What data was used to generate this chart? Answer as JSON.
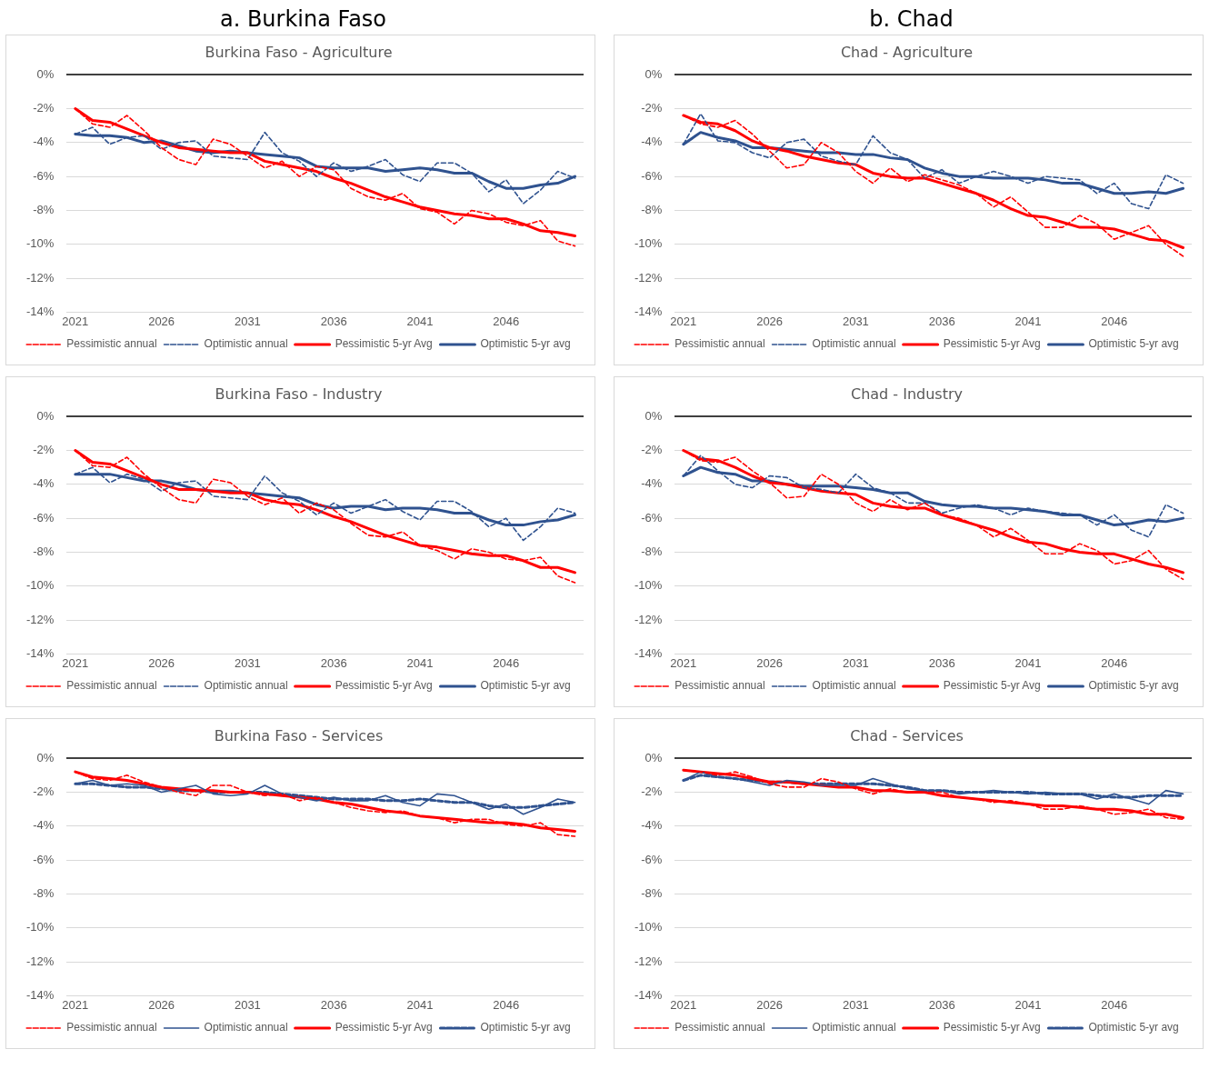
{
  "chart_data": [
    {
      "type": "line",
      "title": "Burkina Faso - Agriculture",
      "annotations": [
        "a. Burkina Faso"
      ],
      "x": [
        2021,
        2022,
        2023,
        2024,
        2025,
        2026,
        2027,
        2028,
        2029,
        2030,
        2031,
        2032,
        2033,
        2034,
        2035,
        2036,
        2037,
        2038,
        2039,
        2040,
        2041,
        2042,
        2043,
        2044,
        2045,
        2046,
        2047,
        2048,
        2049,
        2050
      ],
      "xlim": [
        2020.5,
        2050.5
      ],
      "xticks": [
        2021,
        2026,
        2031,
        2036,
        2041,
        2046
      ],
      "ylim": [
        -14,
        0
      ],
      "yticks": [
        {
          "value": 0,
          "label": "0%"
        },
        {
          "value": -2,
          "label": "-2%"
        },
        {
          "value": -4,
          "label": "-4%"
        },
        {
          "value": -6,
          "label": "-6%"
        },
        {
          "value": -8,
          "label": "-8%"
        },
        {
          "value": -10,
          "label": "-10%"
        },
        {
          "value": -12,
          "label": "-12%"
        },
        {
          "value": -14,
          "label": "-14%"
        }
      ],
      "grid": "y",
      "legend": "bottom",
      "marker": "none",
      "series": [
        {
          "name": "Pessimistic annual",
          "color": "#ff0000",
          "line_style": "dashed",
          "values": [
            -2.0,
            -2.9,
            -3.1,
            -2.4,
            -3.3,
            -4.3,
            -5.0,
            -5.3,
            -3.8,
            -4.1,
            -4.8,
            -5.5,
            -5.1,
            -6.0,
            -5.4,
            -5.6,
            -6.7,
            -7.2,
            -7.4,
            -7.0,
            -7.9,
            -8.1,
            -8.8,
            -8.0,
            -8.2,
            -8.7,
            -8.9,
            -8.6,
            -9.8,
            -10.1
          ]
        },
        {
          "name": "Optimistic annual",
          "color": "#2f528f",
          "line_style": "dashed",
          "values": [
            -3.5,
            -3.1,
            -4.1,
            -3.7,
            -3.6,
            -4.4,
            -4.0,
            -3.9,
            -4.8,
            -4.9,
            -5.0,
            -3.4,
            -4.6,
            -5.1,
            -6.0,
            -5.2,
            -5.7,
            -5.4,
            -5.0,
            -5.9,
            -6.3,
            -5.2,
            -5.2,
            -5.8,
            -6.9,
            -6.2,
            -7.6,
            -6.8,
            -5.7,
            -6.1
          ]
        },
        {
          "name": "Pessimistic 5-yr Avg",
          "color": "#ff0000",
          "line_style": "solid",
          "values": [
            -2.0,
            -2.7,
            -2.8,
            -3.2,
            -3.6,
            -4.0,
            -4.3,
            -4.4,
            -4.5,
            -4.6,
            -4.6,
            -5.1,
            -5.3,
            -5.5,
            -5.7,
            -6.1,
            -6.4,
            -6.8,
            -7.2,
            -7.5,
            -7.8,
            -8.0,
            -8.2,
            -8.3,
            -8.5,
            -8.5,
            -8.8,
            -9.2,
            -9.3,
            -9.5
          ]
        },
        {
          "name": "Optimistic 5-yr avg",
          "color": "#2f528f",
          "line_style": "solid",
          "values": [
            -3.5,
            -3.6,
            -3.6,
            -3.7,
            -4.0,
            -3.9,
            -4.2,
            -4.5,
            -4.6,
            -4.5,
            -4.6,
            -4.7,
            -4.8,
            -4.9,
            -5.4,
            -5.5,
            -5.5,
            -5.5,
            -5.7,
            -5.6,
            -5.5,
            -5.6,
            -5.8,
            -5.8,
            -6.3,
            -6.7,
            -6.7,
            -6.5,
            -6.4,
            -6.0
          ]
        }
      ]
    },
    {
      "type": "line",
      "title": "Chad - Agriculture",
      "annotations": [
        "b. Chad"
      ],
      "x": [
        2021,
        2022,
        2023,
        2024,
        2025,
        2026,
        2027,
        2028,
        2029,
        2030,
        2031,
        2032,
        2033,
        2034,
        2035,
        2036,
        2037,
        2038,
        2039,
        2040,
        2041,
        2042,
        2043,
        2044,
        2045,
        2046,
        2047,
        2048,
        2049,
        2050
      ],
      "xlim": [
        2020.5,
        2050.5
      ],
      "xticks": [
        2021,
        2026,
        2031,
        2036,
        2041,
        2046
      ],
      "ylim": [
        -14,
        0
      ],
      "yticks": [
        {
          "value": 0,
          "label": "0%"
        },
        {
          "value": -2,
          "label": "-2%"
        },
        {
          "value": -4,
          "label": "-4%"
        },
        {
          "value": -6,
          "label": "-6%"
        },
        {
          "value": -8,
          "label": "-8%"
        },
        {
          "value": -10,
          "label": "-10%"
        },
        {
          "value": -12,
          "label": "-12%"
        },
        {
          "value": -14,
          "label": "-14%"
        }
      ],
      "grid": "y",
      "legend": "bottom",
      "marker": "none",
      "series": [
        {
          "name": "Pessimistic annual",
          "color": "#ff0000",
          "line_style": "dashed",
          "values": [
            -2.4,
            -2.9,
            -3.1,
            -2.7,
            -3.5,
            -4.5,
            -5.5,
            -5.3,
            -4.0,
            -4.6,
            -5.7,
            -6.4,
            -5.5,
            -6.3,
            -5.9,
            -6.2,
            -6.5,
            -7.0,
            -7.8,
            -7.2,
            -8.1,
            -9.0,
            -9.0,
            -8.3,
            -8.8,
            -9.7,
            -9.3,
            -8.9,
            -10.0,
            -10.7
          ]
        },
        {
          "name": "Optimistic annual",
          "color": "#2f528f",
          "line_style": "dashed",
          "values": [
            -4.1,
            -2.3,
            -3.9,
            -4.0,
            -4.6,
            -4.9,
            -4.0,
            -3.8,
            -4.8,
            -5.1,
            -5.3,
            -3.6,
            -4.6,
            -5.0,
            -6.1,
            -5.6,
            -6.4,
            -6.0,
            -5.7,
            -6.0,
            -6.4,
            -6.0,
            -6.1,
            -6.2,
            -7.0,
            -6.4,
            -7.6,
            -7.9,
            -5.9,
            -6.4
          ]
        },
        {
          "name": "Pessimistic 5-yr Avg",
          "color": "#ff0000",
          "line_style": "solid",
          "values": [
            -2.4,
            -2.8,
            -2.9,
            -3.3,
            -3.9,
            -4.3,
            -4.5,
            -4.8,
            -5.0,
            -5.2,
            -5.3,
            -5.8,
            -6.0,
            -6.1,
            -6.1,
            -6.4,
            -6.7,
            -7.0,
            -7.4,
            -7.9,
            -8.3,
            -8.4,
            -8.7,
            -9.0,
            -9.0,
            -9.1,
            -9.4,
            -9.7,
            -9.8,
            -10.2
          ]
        },
        {
          "name": "Optimistic 5-yr avg",
          "color": "#2f528f",
          "line_style": "solid",
          "values": [
            -4.1,
            -3.4,
            -3.7,
            -3.9,
            -4.3,
            -4.3,
            -4.4,
            -4.5,
            -4.6,
            -4.6,
            -4.7,
            -4.7,
            -4.9,
            -5.0,
            -5.5,
            -5.8,
            -6.0,
            -6.0,
            -6.1,
            -6.1,
            -6.1,
            -6.2,
            -6.4,
            -6.4,
            -6.7,
            -7.0,
            -7.0,
            -6.9,
            -7.0,
            -6.7
          ]
        }
      ]
    },
    {
      "type": "line",
      "title": "Burkina Faso - Industry",
      "x": [
        2021,
        2022,
        2023,
        2024,
        2025,
        2026,
        2027,
        2028,
        2029,
        2030,
        2031,
        2032,
        2033,
        2034,
        2035,
        2036,
        2037,
        2038,
        2039,
        2040,
        2041,
        2042,
        2043,
        2044,
        2045,
        2046,
        2047,
        2048,
        2049,
        2050
      ],
      "xlim": [
        2020.5,
        2050.5
      ],
      "xticks": [
        2021,
        2026,
        2031,
        2036,
        2041,
        2046
      ],
      "ylim": [
        -14,
        0
      ],
      "yticks": [
        {
          "value": 0,
          "label": "0%"
        },
        {
          "value": -2,
          "label": "-2%"
        },
        {
          "value": -4,
          "label": "-4%"
        },
        {
          "value": -6,
          "label": "-6%"
        },
        {
          "value": -8,
          "label": "-8%"
        },
        {
          "value": -10,
          "label": "-10%"
        },
        {
          "value": -12,
          "label": "-12%"
        },
        {
          "value": -14,
          "label": "-14%"
        }
      ],
      "grid": "y",
      "legend": "bottom",
      "marker": "none",
      "series": [
        {
          "name": "Pessimistic annual",
          "color": "#ff0000",
          "line_style": "dashed",
          "values": [
            -2.0,
            -2.9,
            -3.0,
            -2.4,
            -3.4,
            -4.2,
            -4.9,
            -5.1,
            -3.7,
            -3.9,
            -4.7,
            -5.2,
            -4.8,
            -5.7,
            -5.1,
            -5.5,
            -6.3,
            -7.0,
            -7.1,
            -6.8,
            -7.6,
            -7.9,
            -8.4,
            -7.8,
            -8.0,
            -8.4,
            -8.5,
            -8.3,
            -9.4,
            -9.8
          ]
        },
        {
          "name": "Optimistic annual",
          "color": "#2f528f",
          "line_style": "dashed",
          "values": [
            -3.4,
            -3.0,
            -3.9,
            -3.4,
            -3.7,
            -4.4,
            -3.9,
            -3.8,
            -4.7,
            -4.8,
            -4.9,
            -3.5,
            -4.5,
            -5.0,
            -5.8,
            -5.1,
            -5.7,
            -5.3,
            -4.9,
            -5.6,
            -6.1,
            -5.0,
            -5.0,
            -5.6,
            -6.5,
            -6.0,
            -7.3,
            -6.5,
            -5.4,
            -5.7
          ]
        },
        {
          "name": "Pessimistic 5-yr Avg",
          "color": "#ff0000",
          "line_style": "solid",
          "values": [
            -2.0,
            -2.7,
            -2.8,
            -3.2,
            -3.6,
            -4.0,
            -4.3,
            -4.3,
            -4.4,
            -4.5,
            -4.5,
            -4.9,
            -5.1,
            -5.2,
            -5.5,
            -5.9,
            -6.2,
            -6.6,
            -7.0,
            -7.3,
            -7.6,
            -7.7,
            -7.9,
            -8.1,
            -8.2,
            -8.2,
            -8.5,
            -8.9,
            -8.9,
            -9.2
          ]
        },
        {
          "name": "Optimistic 5-yr avg",
          "color": "#2f528f",
          "line_style": "solid",
          "values": [
            -3.4,
            -3.4,
            -3.4,
            -3.6,
            -3.8,
            -3.8,
            -4.0,
            -4.3,
            -4.4,
            -4.4,
            -4.5,
            -4.6,
            -4.7,
            -4.8,
            -5.2,
            -5.4,
            -5.3,
            -5.3,
            -5.5,
            -5.4,
            -5.4,
            -5.5,
            -5.7,
            -5.7,
            -6.1,
            -6.4,
            -6.4,
            -6.2,
            -6.1,
            -5.8
          ]
        }
      ]
    },
    {
      "type": "line",
      "title": "Chad - Industry",
      "x": [
        2021,
        2022,
        2023,
        2024,
        2025,
        2026,
        2027,
        2028,
        2029,
        2030,
        2031,
        2032,
        2033,
        2034,
        2035,
        2036,
        2037,
        2038,
        2039,
        2040,
        2041,
        2042,
        2043,
        2044,
        2045,
        2046,
        2047,
        2048,
        2049,
        2050
      ],
      "xlim": [
        2020.5,
        2050.5
      ],
      "xticks": [
        2021,
        2026,
        2031,
        2036,
        2041,
        2046
      ],
      "ylim": [
        -14,
        0
      ],
      "yticks": [
        {
          "value": 0,
          "label": "0%"
        },
        {
          "value": -2,
          "label": "-2%"
        },
        {
          "value": -4,
          "label": "-4%"
        },
        {
          "value": -6,
          "label": "-6%"
        },
        {
          "value": -8,
          "label": "-8%"
        },
        {
          "value": -10,
          "label": "-10%"
        },
        {
          "value": -12,
          "label": "-12%"
        },
        {
          "value": -14,
          "label": "-14%"
        }
      ],
      "grid": "y",
      "legend": "bottom",
      "marker": "none",
      "series": [
        {
          "name": "Pessimistic annual",
          "color": "#ff0000",
          "line_style": "dashed",
          "values": [
            -2.0,
            -2.6,
            -2.7,
            -2.4,
            -3.2,
            -3.9,
            -4.8,
            -4.7,
            -3.4,
            -4.0,
            -5.1,
            -5.6,
            -4.9,
            -5.5,
            -5.1,
            -5.8,
            -6.0,
            -6.4,
            -7.1,
            -6.6,
            -7.3,
            -8.1,
            -8.1,
            -7.5,
            -7.9,
            -8.7,
            -8.5,
            -7.9,
            -9.0,
            -9.6
          ]
        },
        {
          "name": "Optimistic annual",
          "color": "#2f528f",
          "line_style": "dashed",
          "values": [
            -3.5,
            -2.3,
            -3.2,
            -4.0,
            -4.2,
            -3.5,
            -3.6,
            -4.2,
            -4.3,
            -4.5,
            -3.4,
            -4.2,
            -4.5,
            -5.1,
            -5.1,
            -5.7,
            -5.4,
            -5.2,
            -5.4,
            -5.8,
            -5.4,
            -5.6,
            -5.7,
            -5.8,
            -6.4,
            -5.8,
            -6.7,
            -7.1,
            -5.2,
            -5.7
          ]
        },
        {
          "name": "Pessimistic 5-yr Avg",
          "color": "#ff0000",
          "line_style": "solid",
          "values": [
            -2.0,
            -2.5,
            -2.6,
            -3.0,
            -3.5,
            -3.9,
            -4.0,
            -4.2,
            -4.4,
            -4.5,
            -4.6,
            -5.1,
            -5.3,
            -5.4,
            -5.4,
            -5.8,
            -6.1,
            -6.4,
            -6.7,
            -7.1,
            -7.4,
            -7.5,
            -7.8,
            -8.0,
            -8.1,
            -8.1,
            -8.4,
            -8.7,
            -8.9,
            -9.2
          ]
        },
        {
          "name": "Optimistic 5-yr avg",
          "color": "#2f528f",
          "line_style": "solid",
          "values": [
            -3.5,
            -3.0,
            -3.3,
            -3.4,
            -3.8,
            -3.8,
            -4.0,
            -4.1,
            -4.1,
            -4.1,
            -4.2,
            -4.3,
            -4.5,
            -4.5,
            -5.0,
            -5.2,
            -5.3,
            -5.3,
            -5.4,
            -5.4,
            -5.5,
            -5.6,
            -5.8,
            -5.8,
            -6.1,
            -6.4,
            -6.3,
            -6.1,
            -6.2,
            -6.0
          ]
        }
      ]
    },
    {
      "type": "line",
      "title": "Burkina Faso - Services",
      "x": [
        2021,
        2022,
        2023,
        2024,
        2025,
        2026,
        2027,
        2028,
        2029,
        2030,
        2031,
        2032,
        2033,
        2034,
        2035,
        2036,
        2037,
        2038,
        2039,
        2040,
        2041,
        2042,
        2043,
        2044,
        2045,
        2046,
        2047,
        2048,
        2049,
        2050
      ],
      "xlim": [
        2020.5,
        2050.5
      ],
      "xticks": [
        2021,
        2026,
        2031,
        2036,
        2041,
        2046
      ],
      "ylim": [
        -14,
        0
      ],
      "yticks": [
        {
          "value": 0,
          "label": "0%"
        },
        {
          "value": -2,
          "label": "-2%"
        },
        {
          "value": -4,
          "label": "-4%"
        },
        {
          "value": -6,
          "label": "-6%"
        },
        {
          "value": -8,
          "label": "-8%"
        },
        {
          "value": -10,
          "label": "-10%"
        },
        {
          "value": -12,
          "label": "-12%"
        },
        {
          "value": -14,
          "label": "-14%"
        }
      ],
      "grid": "y",
      "legend": "bottom",
      "marker": "none",
      "series": [
        {
          "name": "Pessimistic annual",
          "color": "#ff0000",
          "line_style": "dashed",
          "values": [
            -0.8,
            -1.2,
            -1.3,
            -1.0,
            -1.4,
            -1.7,
            -2.0,
            -2.2,
            -1.6,
            -1.6,
            -2.0,
            -2.2,
            -2.1,
            -2.5,
            -2.3,
            -2.6,
            -2.9,
            -3.1,
            -3.2,
            -3.1,
            -3.4,
            -3.5,
            -3.8,
            -3.6,
            -3.6,
            -3.9,
            -4.0,
            -3.8,
            -4.5,
            -4.6
          ]
        },
        {
          "name": "Optimistic annual",
          "color": "#2f528f",
          "line_style": "solid",
          "values": [
            -1.5,
            -1.3,
            -1.6,
            -1.5,
            -1.6,
            -2.0,
            -1.8,
            -1.6,
            -2.1,
            -2.2,
            -2.1,
            -1.6,
            -2.1,
            -2.3,
            -2.5,
            -2.3,
            -2.5,
            -2.5,
            -2.2,
            -2.6,
            -2.8,
            -2.1,
            -2.2,
            -2.6,
            -3.0,
            -2.7,
            -3.3,
            -2.9,
            -2.4,
            -2.6
          ]
        },
        {
          "name": "Pessimistic 5-yr Avg",
          "color": "#ff0000",
          "line_style": "solid",
          "values": [
            -0.8,
            -1.1,
            -1.2,
            -1.3,
            -1.5,
            -1.7,
            -1.8,
            -1.9,
            -1.9,
            -2.0,
            -2.0,
            -2.1,
            -2.2,
            -2.3,
            -2.4,
            -2.6,
            -2.7,
            -2.9,
            -3.1,
            -3.2,
            -3.4,
            -3.5,
            -3.6,
            -3.7,
            -3.8,
            -3.8,
            -3.9,
            -4.1,
            -4.2,
            -4.3
          ]
        },
        {
          "name": "Optimistic 5-yr avg",
          "color": "#2f528f",
          "line_style": "dashed",
          "values": [
            -1.5,
            -1.5,
            -1.6,
            -1.7,
            -1.7,
            -1.8,
            -1.9,
            -1.9,
            -2.0,
            -2.0,
            -2.0,
            -2.0,
            -2.1,
            -2.2,
            -2.3,
            -2.4,
            -2.4,
            -2.4,
            -2.5,
            -2.5,
            -2.4,
            -2.5,
            -2.6,
            -2.6,
            -2.8,
            -2.9,
            -2.9,
            -2.8,
            -2.7,
            -2.6
          ]
        }
      ]
    },
    {
      "type": "line",
      "title": "Chad - Services",
      "x": [
        2021,
        2022,
        2023,
        2024,
        2025,
        2026,
        2027,
        2028,
        2029,
        2030,
        2031,
        2032,
        2033,
        2034,
        2035,
        2036,
        2037,
        2038,
        2039,
        2040,
        2041,
        2042,
        2043,
        2044,
        2045,
        2046,
        2047,
        2048,
        2049,
        2050
      ],
      "xlim": [
        2020.5,
        2050.5
      ],
      "xticks": [
        2021,
        2026,
        2031,
        2036,
        2041,
        2046
      ],
      "ylim": [
        -14,
        0
      ],
      "yticks": [
        {
          "value": 0,
          "label": "0%"
        },
        {
          "value": -2,
          "label": "-2%"
        },
        {
          "value": -4,
          "label": "-4%"
        },
        {
          "value": -6,
          "label": "-6%"
        },
        {
          "value": -8,
          "label": "-8%"
        },
        {
          "value": -10,
          "label": "-10%"
        },
        {
          "value": -12,
          "label": "-12%"
        },
        {
          "value": -14,
          "label": "-14%"
        }
      ],
      "grid": "y",
      "legend": "bottom",
      "marker": "none",
      "series": [
        {
          "name": "Pessimistic annual",
          "color": "#ff0000",
          "line_style": "dashed",
          "values": [
            -0.7,
            -0.8,
            -1.0,
            -0.8,
            -1.1,
            -1.5,
            -1.7,
            -1.7,
            -1.2,
            -1.4,
            -1.8,
            -2.1,
            -1.8,
            -2.0,
            -2.0,
            -2.0,
            -2.3,
            -2.4,
            -2.6,
            -2.5,
            -2.7,
            -3.0,
            -3.0,
            -2.8,
            -3.0,
            -3.3,
            -3.2,
            -3.0,
            -3.5,
            -3.6
          ]
        },
        {
          "name": "Optimistic annual",
          "color": "#2f528f",
          "line_style": "solid",
          "values": [
            -1.3,
            -0.8,
            -1.1,
            -1.2,
            -1.4,
            -1.6,
            -1.3,
            -1.4,
            -1.6,
            -1.6,
            -1.6,
            -1.2,
            -1.5,
            -1.8,
            -1.9,
            -1.9,
            -2.1,
            -2.0,
            -1.9,
            -2.0,
            -2.1,
            -2.0,
            -2.1,
            -2.1,
            -2.4,
            -2.1,
            -2.4,
            -2.7,
            -1.9,
            -2.1
          ]
        },
        {
          "name": "Pessimistic 5-yr Avg",
          "color": "#ff0000",
          "line_style": "solid",
          "values": [
            -0.7,
            -0.8,
            -0.9,
            -1.0,
            -1.2,
            -1.4,
            -1.4,
            -1.5,
            -1.6,
            -1.7,
            -1.7,
            -1.9,
            -1.9,
            -2.0,
            -2.0,
            -2.2,
            -2.3,
            -2.4,
            -2.5,
            -2.6,
            -2.7,
            -2.8,
            -2.8,
            -2.9,
            -3.0,
            -3.0,
            -3.1,
            -3.3,
            -3.3,
            -3.5
          ]
        },
        {
          "name": "Optimistic 5-yr avg",
          "color": "#2f528f",
          "line_style": "dashed",
          "values": [
            -1.3,
            -1.0,
            -1.1,
            -1.2,
            -1.3,
            -1.4,
            -1.4,
            -1.5,
            -1.5,
            -1.5,
            -1.5,
            -1.5,
            -1.6,
            -1.7,
            -1.9,
            -1.9,
            -2.0,
            -2.0,
            -2.0,
            -2.0,
            -2.0,
            -2.1,
            -2.1,
            -2.1,
            -2.2,
            -2.3,
            -2.3,
            -2.2,
            -2.2,
            -2.2
          ]
        }
      ]
    }
  ]
}
